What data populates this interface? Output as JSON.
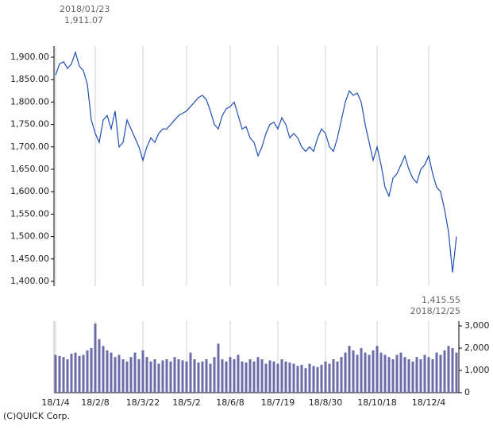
{
  "chart_data": [
    {
      "type": "line",
      "color": "#1f4fb4",
      "annotations": [
        "2018/01/23",
        "1,911.07",
        "1,415.55",
        "2018/12/25"
      ],
      "values": [
        1860,
        1885,
        1890,
        1875,
        1885,
        1911,
        1880,
        1870,
        1840,
        1760,
        1730,
        1710,
        1760,
        1770,
        1740,
        1780,
        1700,
        1710,
        1760,
        1740,
        1720,
        1700,
        1670,
        1700,
        1720,
        1710,
        1730,
        1740,
        1740,
        1750,
        1760,
        1770,
        1775,
        1780,
        1790,
        1800,
        1810,
        1815,
        1805,
        1780,
        1750,
        1740,
        1770,
        1785,
        1790,
        1800,
        1770,
        1740,
        1745,
        1720,
        1710,
        1680,
        1700,
        1730,
        1750,
        1755,
        1740,
        1765,
        1750,
        1720,
        1730,
        1720,
        1700,
        1690,
        1700,
        1690,
        1720,
        1740,
        1730,
        1700,
        1690,
        1720,
        1760,
        1800,
        1825,
        1815,
        1820,
        1800,
        1750,
        1710,
        1670,
        1700,
        1660,
        1610,
        1590,
        1630,
        1640,
        1660,
        1680,
        1650,
        1630,
        1620,
        1650,
        1660,
        1680,
        1640,
        1610,
        1600,
        1560,
        1510,
        1420,
        1500
      ],
      "ylim": [
        1400,
        1900
      ],
      "yticks": [
        {
          "value": 1400,
          "label": "1,400.00"
        },
        {
          "value": 1450,
          "label": "1,450.00"
        },
        {
          "value": 1500,
          "label": "1,500.00"
        },
        {
          "value": 1550,
          "label": "1,550.00"
        },
        {
          "value": 1600,
          "label": "1,600.00"
        },
        {
          "value": 1650,
          "label": "1,650.00"
        },
        {
          "value": 1700,
          "label": "1,700.00"
        },
        {
          "value": 1750,
          "label": "1,750.00"
        },
        {
          "value": 1800,
          "label": "1,800.00"
        },
        {
          "value": 1850,
          "label": "1,850.00"
        },
        {
          "value": 1900,
          "label": "1,900.00"
        }
      ]
    },
    {
      "type": "bar",
      "color": "#6b6ba8",
      "categories": [
        "18/1/4",
        null,
        null,
        null,
        null,
        null,
        null,
        null,
        null,
        null,
        "18/2/8",
        null,
        null,
        null,
        null,
        null,
        null,
        null,
        null,
        null,
        null,
        null,
        "18/3/22",
        null,
        null,
        null,
        null,
        null,
        null,
        null,
        null,
        null,
        null,
        "18/5/2",
        null,
        null,
        null,
        null,
        null,
        null,
        null,
        null,
        null,
        null,
        "18/6/8",
        null,
        null,
        null,
        null,
        null,
        null,
        null,
        null,
        null,
        null,
        null,
        "18/7/19",
        null,
        null,
        null,
        null,
        null,
        null,
        null,
        null,
        null,
        null,
        null,
        "18/8/30",
        null,
        null,
        null,
        null,
        null,
        null,
        null,
        null,
        null,
        null,
        null,
        null,
        "18/10/18",
        null,
        null,
        null,
        null,
        null,
        null,
        null,
        null,
        null,
        null,
        null,
        null,
        "18/12/4",
        null,
        null,
        null,
        null,
        null,
        null,
        null
      ],
      "values": [
        1700,
        1650,
        1600,
        1500,
        1750,
        1800,
        1650,
        1700,
        1900,
        2000,
        3100,
        2400,
        2100,
        1900,
        1800,
        1600,
        1700,
        1500,
        1400,
        1600,
        1800,
        1500,
        1900,
        1600,
        1400,
        1500,
        1300,
        1450,
        1500,
        1400,
        1600,
        1500,
        1450,
        1400,
        1800,
        1500,
        1350,
        1400,
        1500,
        1300,
        1600,
        2200,
        1500,
        1400,
        1600,
        1500,
        1700,
        1400,
        1350,
        1500,
        1400,
        1600,
        1500,
        1300,
        1450,
        1400,
        1300,
        1500,
        1400,
        1350,
        1300,
        1200,
        1250,
        1100,
        1300,
        1200,
        1150,
        1250,
        1400,
        1300,
        1500,
        1400,
        1600,
        1800,
        2100,
        1900,
        1700,
        2000,
        1800,
        1700,
        1900,
        2100,
        1800,
        1700,
        1600,
        1500,
        1700,
        1800,
        1600,
        1500,
        1400,
        1600,
        1500,
        1700,
        1600,
        1500,
        1800,
        1700,
        1900,
        2100,
        2000,
        1800
      ],
      "ylim": [
        0,
        3000
      ],
      "yticks": [
        0,
        {
          "value": 1000,
          "label": "1,000"
        },
        {
          "value": 2000,
          "label": "2,000"
        },
        {
          "value": 3000,
          "label": "3,000"
        }
      ]
    }
  ],
  "footer": "(C)QUICK Corp."
}
